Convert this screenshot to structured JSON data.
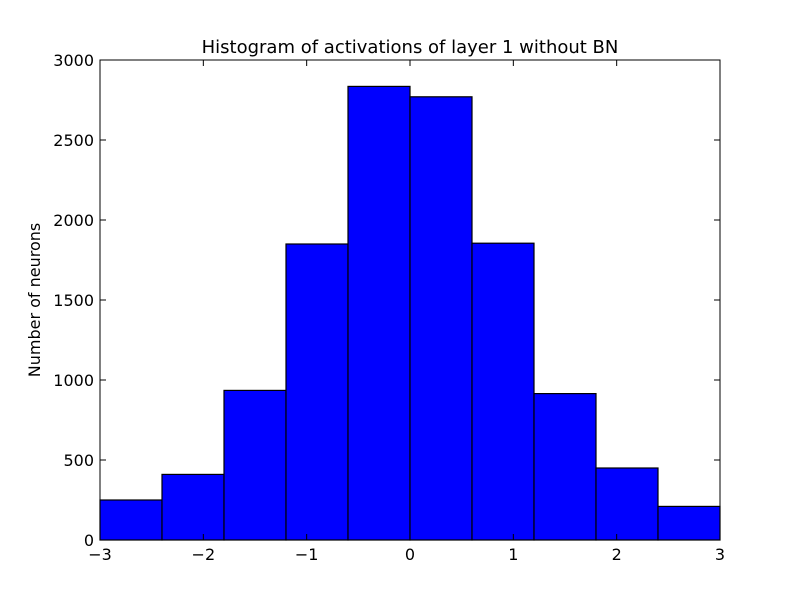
{
  "chart_data": {
    "type": "bar",
    "title": "Histogram of activations of layer 1  without BN",
    "xlabel": "",
    "ylabel": "Number of neurons",
    "xlim": [
      -3,
      3
    ],
    "ylim": [
      0,
      3000
    ],
    "grid": false,
    "bin_edges": [
      -3,
      -2.4,
      -1.8,
      -1.2,
      -0.6,
      0,
      0.6,
      1.2,
      1.8,
      2.4,
      3
    ],
    "values": [
      250,
      410,
      935,
      1850,
      2835,
      2770,
      1855,
      915,
      450,
      210
    ],
    "x_ticks": [
      {
        "value": -3,
        "label": "−3"
      },
      {
        "value": -2,
        "label": "−2"
      },
      {
        "value": -1,
        "label": "−1"
      },
      {
        "value": 0,
        "label": "0"
      },
      {
        "value": 1,
        "label": "1"
      },
      {
        "value": 2,
        "label": "2"
      },
      {
        "value": 3,
        "label": "3"
      }
    ],
    "y_ticks": [
      {
        "value": 0,
        "label": "0"
      },
      {
        "value": 500,
        "label": "500"
      },
      {
        "value": 1000,
        "label": "1000"
      },
      {
        "value": 1500,
        "label": "1500"
      },
      {
        "value": 2000,
        "label": "2000"
      },
      {
        "value": 2500,
        "label": "2500"
      },
      {
        "value": 3000,
        "label": "3000"
      }
    ],
    "bar_color": "#0000ff",
    "edge_color": "#000000"
  }
}
